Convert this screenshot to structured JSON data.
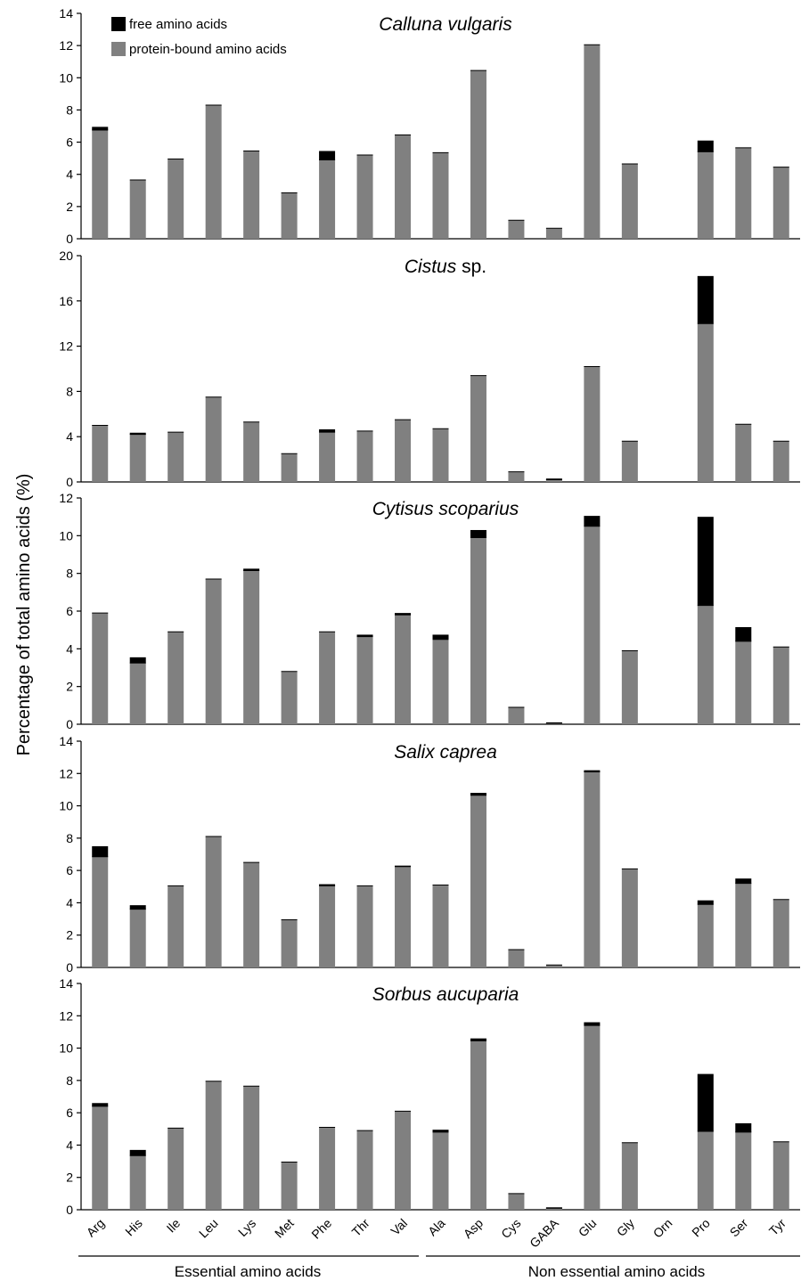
{
  "y_axis_label": "Percentage of total amino acids (%)",
  "group_labels": [
    "Essential amino acids",
    "Non essential amino acids"
  ],
  "legend": [
    {
      "label": "free amino acids",
      "color": "#000000"
    },
    {
      "label": "protein-bound amino acids",
      "color": "#808080"
    }
  ],
  "colors": {
    "free": "#000000",
    "bound": "#808080"
  },
  "chart_data": [
    {
      "type": "bar",
      "stacked": true,
      "title": "Calluna vulgaris",
      "title_parts": [
        {
          "text": "Calluna vulgaris",
          "italic": true
        }
      ],
      "categories": [
        "Arg",
        "His",
        "Ile",
        "Leu",
        "Lys",
        "Met",
        "Phe",
        "Thr",
        "Val",
        "Ala",
        "Asp",
        "Cys",
        "GABA",
        "Glu",
        "Gly",
        "Orn",
        "Pro",
        "Ser",
        "Tyr"
      ],
      "series": [
        {
          "name": "protein-bound amino acids",
          "values": [
            6.75,
            3.65,
            4.95,
            8.3,
            5.45,
            2.85,
            4.9,
            5.2,
            6.45,
            5.35,
            10.45,
            1.15,
            0.65,
            12.05,
            4.65,
            0,
            5.4,
            5.65,
            4.45
          ]
        },
        {
          "name": "free amino acids",
          "values": [
            0.2,
            0,
            0,
            0,
            0,
            0,
            0.55,
            0,
            0,
            0,
            0,
            0,
            0,
            0,
            0,
            0,
            0.7,
            0,
            0
          ]
        }
      ],
      "ylim": [
        0,
        14
      ],
      "yticks": [
        0,
        2,
        4,
        6,
        8,
        10,
        12,
        14
      ]
    },
    {
      "type": "bar",
      "stacked": true,
      "title": "Cistus sp.",
      "title_parts": [
        {
          "text": "Cistus",
          "italic": true
        },
        {
          "text": " sp.",
          "italic": false
        }
      ],
      "categories": [
        "Arg",
        "His",
        "Ile",
        "Leu",
        "Lys",
        "Met",
        "Phe",
        "Thr",
        "Val",
        "Ala",
        "Asp",
        "Cys",
        "GABA",
        "Glu",
        "Gly",
        "Orn",
        "Pro",
        "Ser",
        "Tyr"
      ],
      "series": [
        {
          "name": "protein-bound amino acids",
          "values": [
            5.0,
            4.2,
            4.4,
            7.5,
            5.3,
            2.5,
            4.4,
            4.5,
            5.5,
            4.7,
            9.4,
            0.9,
            0.2,
            10.2,
            3.6,
            0,
            14.0,
            5.1,
            3.6
          ]
        },
        {
          "name": "free amino acids",
          "values": [
            0,
            0.15,
            0,
            0,
            0,
            0,
            0.25,
            0,
            0,
            0,
            0,
            0,
            0.1,
            0,
            0,
            0,
            4.2,
            0,
            0
          ]
        }
      ],
      "ylim": [
        0,
        20
      ],
      "yticks": [
        0,
        4,
        8,
        12,
        16,
        20
      ]
    },
    {
      "type": "bar",
      "stacked": true,
      "title": "Cytisus scoparius",
      "title_parts": [
        {
          "text": "Cytisus scoparius",
          "italic": true
        }
      ],
      "categories": [
        "Arg",
        "His",
        "Ile",
        "Leu",
        "Lys",
        "Met",
        "Phe",
        "Thr",
        "Val",
        "Ala",
        "Asp",
        "Cys",
        "GABA",
        "Glu",
        "Gly",
        "Orn",
        "Pro",
        "Ser",
        "Tyr"
      ],
      "series": [
        {
          "name": "protein-bound amino acids",
          "values": [
            5.9,
            3.25,
            4.9,
            7.7,
            8.15,
            2.8,
            4.9,
            4.65,
            5.8,
            4.5,
            9.9,
            0.9,
            0.05,
            10.5,
            3.9,
            0,
            6.3,
            4.4,
            4.1
          ]
        },
        {
          "name": "free amino acids",
          "values": [
            0,
            0.3,
            0,
            0,
            0.1,
            0,
            0,
            0.1,
            0.1,
            0.25,
            0.4,
            0,
            0.05,
            0.55,
            0,
            0,
            4.7,
            0.75,
            0
          ]
        }
      ],
      "ylim": [
        0,
        12
      ],
      "yticks": [
        0,
        2,
        4,
        6,
        8,
        10,
        12
      ]
    },
    {
      "type": "bar",
      "stacked": true,
      "title": "Salix caprea",
      "title_parts": [
        {
          "text": "Salix caprea",
          "italic": true
        }
      ],
      "categories": [
        "Arg",
        "His",
        "Ile",
        "Leu",
        "Lys",
        "Met",
        "Phe",
        "Thr",
        "Val",
        "Ala",
        "Asp",
        "Cys",
        "GABA",
        "Glu",
        "Gly",
        "Orn",
        "Pro",
        "Ser",
        "Tyr"
      ],
      "series": [
        {
          "name": "protein-bound amino acids",
          "values": [
            6.85,
            3.6,
            5.05,
            8.1,
            6.5,
            2.95,
            5.05,
            5.05,
            6.25,
            5.1,
            10.65,
            1.1,
            0.15,
            12.1,
            6.1,
            0,
            3.9,
            5.2,
            4.2
          ]
        },
        {
          "name": "free amino acids",
          "values": [
            0.65,
            0.25,
            0,
            0,
            0,
            0,
            0.1,
            0,
            0.05,
            0,
            0.15,
            0,
            0,
            0.1,
            0,
            0,
            0.25,
            0.3,
            0
          ]
        }
      ],
      "ylim": [
        0,
        14
      ],
      "yticks": [
        0,
        2,
        4,
        6,
        8,
        10,
        12,
        14
      ]
    },
    {
      "type": "bar",
      "stacked": true,
      "title": "Sorbus aucuparia",
      "title_parts": [
        {
          "text": "Sorbus aucuparia",
          "italic": true
        }
      ],
      "categories": [
        "Arg",
        "His",
        "Ile",
        "Leu",
        "Lys",
        "Met",
        "Phe",
        "Thr",
        "Val",
        "Ala",
        "Asp",
        "Cys",
        "GABA",
        "Glu",
        "Gly",
        "Orn",
        "Pro",
        "Ser",
        "Tyr"
      ],
      "series": [
        {
          "name": "protein-bound amino acids",
          "values": [
            6.4,
            3.35,
            5.05,
            7.95,
            7.65,
            2.95,
            5.1,
            4.9,
            6.1,
            4.8,
            10.45,
            1.0,
            0.1,
            11.4,
            4.15,
            0,
            4.85,
            4.8,
            4.2
          ]
        },
        {
          "name": "free amino acids",
          "values": [
            0.2,
            0.35,
            0,
            0,
            0,
            0,
            0,
            0,
            0,
            0.15,
            0.15,
            0,
            0.05,
            0.2,
            0,
            0,
            3.55,
            0.55,
            0
          ]
        }
      ],
      "ylim": [
        0,
        14
      ],
      "yticks": [
        0,
        2,
        4,
        6,
        8,
        10,
        12,
        14
      ]
    }
  ]
}
